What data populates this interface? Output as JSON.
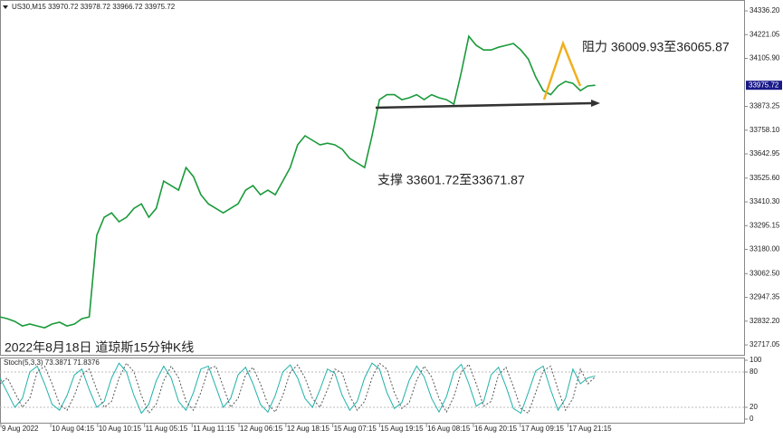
{
  "chart_data": [
    {
      "type": "line",
      "title": "US30,M15  33970.72 33978.72 33966.72 33975.72",
      "caption": "2022年8月18日 道琼斯15分钟K线",
      "annotations": [
        "阻力 36009.93至36065.87",
        "支撑 33601.72至33671.87"
      ],
      "last_price": 33975.72,
      "xlim": [
        0,
        100
      ],
      "ylim": [
        32669,
        34389
      ],
      "yticks": [
        {
          "value": 34336.2,
          "label": "34336.20"
        },
        34221.05,
        {
          "value": 34105.9,
          "label": "34105.90"
        },
        33873.25,
        {
          "value": 33758.1,
          "label": "33758.10"
        },
        33642.95,
        {
          "value": 33525.6,
          "label": "33525.60"
        },
        {
          "value": 33410.3,
          "label": "33410.30"
        },
        33295.15,
        {
          "value": 33180,
          "label": "33180.00"
        },
        {
          "value": 33062.5,
          "label": "33062.50"
        },
        32947.35,
        {
          "value": 32832.2,
          "label": "32832.20"
        },
        32717.05
      ],
      "x": [
        0,
        1,
        2,
        3,
        4,
        5,
        6,
        7,
        8,
        9,
        10,
        11,
        12,
        13,
        14,
        15,
        16,
        17,
        18,
        19,
        20,
        21,
        22,
        23,
        24,
        25,
        26,
        27,
        28,
        29,
        30,
        31,
        32,
        33,
        34,
        35,
        36,
        37,
        38,
        39,
        40,
        41,
        42,
        43,
        44,
        45,
        46,
        47,
        48,
        49,
        50,
        51,
        52,
        53,
        54,
        55,
        56,
        57,
        58,
        59,
        60,
        61,
        62,
        63,
        64,
        65,
        66,
        67,
        68,
        69,
        70,
        71,
        72,
        73,
        74,
        75,
        76,
        77,
        78,
        79,
        80
      ],
      "series": [
        {
          "name": "US30",
          "color": "#1a9a3a",
          "values": [
            32853,
            32844,
            32831,
            32809,
            32818,
            32809,
            32800,
            32818,
            32827,
            32809,
            32818,
            32844,
            32853,
            33248,
            33336,
            33357,
            33314,
            33336,
            33379,
            33401,
            33336,
            33379,
            33511,
            33489,
            33467,
            33577,
            33533,
            33445,
            33401,
            33379,
            33357,
            33379,
            33401,
            33467,
            33489,
            33445,
            33467,
            33445,
            33511,
            33577,
            33687,
            33731,
            33709,
            33687,
            33695,
            33687,
            33665,
            33621,
            33599,
            33577,
            33731,
            33906,
            33930,
            33930,
            33906,
            33915,
            33930,
            33906,
            33930,
            33915,
            33906,
            33884,
            34038,
            34213,
            34169,
            34147,
            34147,
            34160,
            34169,
            34178,
            34147,
            34103,
            34016,
            33950,
            33930,
            33972,
            33994,
            33985,
            33950,
            33972,
            33975.72
          ]
        }
      ]
    },
    {
      "type": "line",
      "title": "Stoch(5,3,3) 73.3871 71.8376",
      "xlim": [
        0,
        100
      ],
      "ylim": [
        -7.7,
        104.6
      ],
      "yticks": [
        100,
        80,
        20,
        0
      ],
      "xticks": [
        {
          "value": 0,
          "label": "9 Aug 2022"
        },
        {
          "value": 6.7,
          "label": "10 Aug 04:15"
        },
        {
          "value": 13,
          "label": "10 Aug 10:15"
        },
        {
          "value": 19.3,
          "label": "11 Aug 05:15"
        },
        {
          "value": 25.7,
          "label": "11 Aug 11:15"
        },
        {
          "value": 32,
          "label": "12 Aug 06:15"
        },
        {
          "value": 38.3,
          "label": "12 Aug 18:15"
        },
        {
          "value": 44.6,
          "label": "15 Aug 07:15"
        },
        {
          "value": 50.9,
          "label": "15 Aug 19:15"
        },
        {
          "value": 57.2,
          "label": "16 Aug 08:15"
        },
        {
          "value": 63.5,
          "label": "16 Aug 20:15"
        },
        {
          "value": 69.8,
          "label": "17 Aug 09:15"
        },
        {
          "value": 76.2,
          "label": "17 Aug 21:15"
        }
      ],
      "x": [
        0,
        1,
        2,
        3,
        4,
        5,
        6,
        7,
        8,
        9,
        10,
        11,
        12,
        13,
        14,
        15,
        16,
        17,
        18,
        19,
        20,
        21,
        22,
        23,
        24,
        25,
        26,
        27,
        28,
        29,
        30,
        31,
        32,
        33,
        34,
        35,
        36,
        37,
        38,
        39,
        40,
        41,
        42,
        43,
        44,
        45,
        46,
        47,
        48,
        49,
        50,
        51,
        52,
        53,
        54,
        55,
        56,
        57,
        58,
        59,
        60,
        61,
        62,
        63,
        64,
        65,
        66,
        67,
        68,
        69,
        70,
        71,
        72,
        73,
        74,
        75,
        76,
        77,
        78,
        79,
        80
      ],
      "series": [
        {
          "name": "Main",
          "color": "#20b2aa",
          "values": [
            70,
            45,
            20,
            35,
            80,
            90,
            60,
            25,
            15,
            40,
            75,
            85,
            50,
            20,
            30,
            70,
            95,
            80,
            40,
            10,
            25,
            65,
            90,
            70,
            30,
            15,
            45,
            85,
            90,
            55,
            20,
            35,
            75,
            88,
            60,
            25,
            12,
            40,
            80,
            92,
            70,
            35,
            20,
            50,
            85,
            78,
            40,
            15,
            30,
            70,
            95,
            85,
            45,
            18,
            28,
            66,
            90,
            72,
            35,
            12,
            38,
            80,
            93,
            60,
            22,
            30,
            75,
            88,
            55,
            18,
            10,
            45,
            82,
            90,
            50,
            15,
            35,
            85,
            60,
            70,
            73.3871
          ]
        },
        {
          "name": "Signal",
          "color": "#555555",
          "dashed": true,
          "values": [
            60,
            70,
            45,
            20,
            35,
            80,
            90,
            60,
            25,
            15,
            40,
            75,
            85,
            50,
            20,
            30,
            70,
            95,
            80,
            40,
            10,
            25,
            65,
            90,
            70,
            30,
            15,
            45,
            85,
            90,
            55,
            20,
            35,
            75,
            88,
            60,
            25,
            12,
            40,
            80,
            92,
            70,
            35,
            20,
            50,
            85,
            78,
            40,
            15,
            30,
            70,
            95,
            85,
            45,
            18,
            28,
            66,
            90,
            72,
            35,
            12,
            38,
            80,
            93,
            60,
            22,
            30,
            75,
            88,
            55,
            18,
            10,
            45,
            82,
            90,
            50,
            15,
            35,
            85,
            60,
            71.8376
          ]
        }
      ]
    }
  ]
}
